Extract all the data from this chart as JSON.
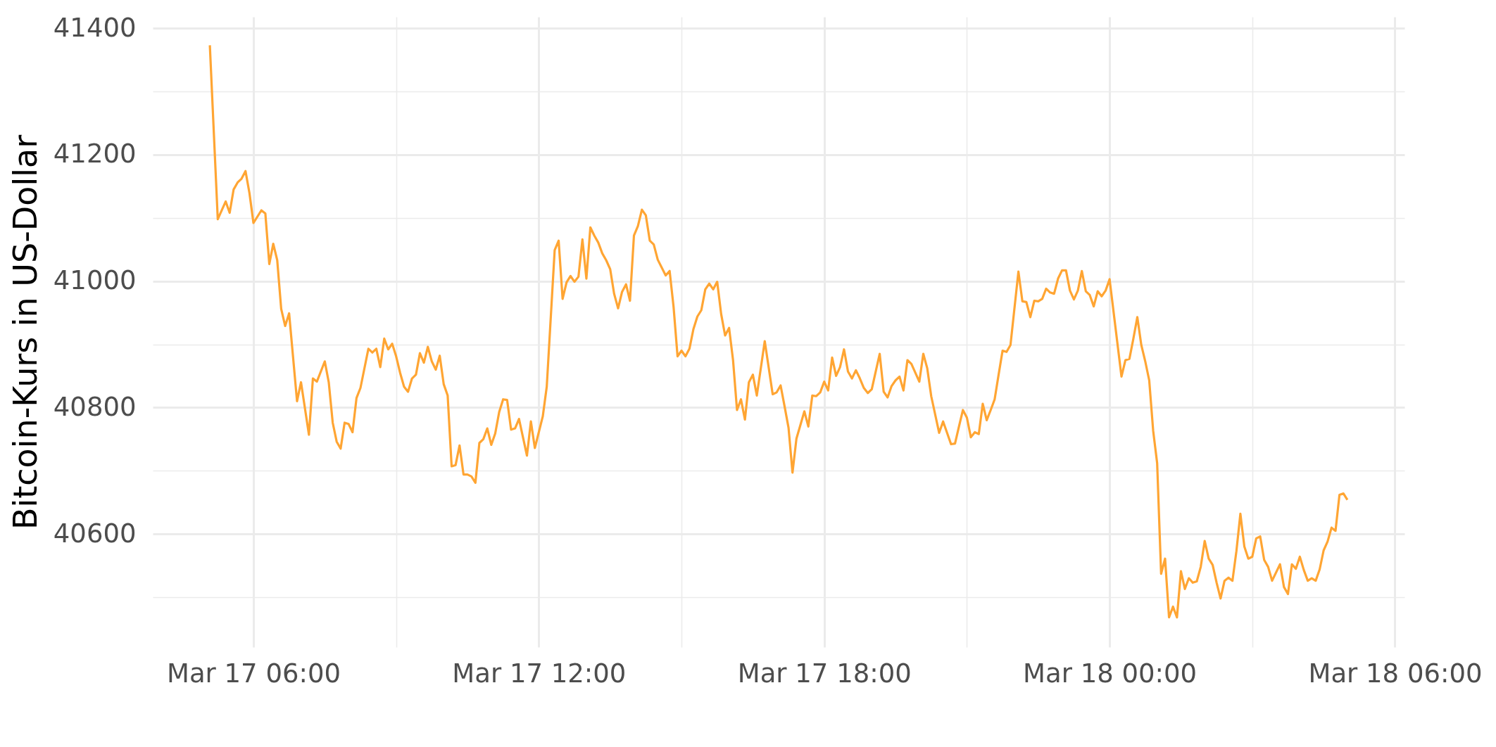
{
  "chart_data": {
    "type": "line",
    "ylabel": "Bitcoin-Kurs in US-Dollar",
    "x": [
      "--03-17T05:05",
      "--03-17T05:15",
      "--03-17T05:25",
      "--03-17T05:30",
      "--03-17T05:35",
      "--03-17T05:40",
      "--03-17T05:45",
      "--03-17T05:50",
      "--03-17T05:55",
      "--03-17T06:00",
      "--03-17T06:10",
      "--03-17T06:15",
      "--03-17T06:20",
      "--03-17T06:25",
      "--03-17T06:30",
      "--03-17T06:35",
      "--03-17T06:40",
      "--03-17T06:45",
      "--03-17T06:55",
      "--03-17T07:00",
      "--03-17T07:10",
      "--03-17T07:15",
      "--03-17T07:20",
      "--03-17T07:30",
      "--03-17T07:35",
      "--03-17T07:40",
      "--03-17T07:45",
      "--03-17T07:50",
      "--03-17T07:55",
      "--03-17T08:00",
      "--03-17T08:05",
      "--03-17T08:10",
      "--03-17T08:15",
      "--03-17T08:25",
      "--03-17T08:30",
      "--03-17T08:35",
      "--03-17T08:40",
      "--03-17T08:45",
      "--03-17T08:50",
      "--03-17T08:55",
      "--03-17T09:00",
      "--03-17T09:05",
      "--03-17T09:10",
      "--03-17T09:15",
      "--03-17T09:20",
      "--03-17T09:25",
      "--03-17T09:30",
      "--03-17T09:35",
      "--03-17T09:40",
      "--03-17T09:45",
      "--03-17T09:50",
      "--03-17T09:55",
      "--03-17T10:00",
      "--03-17T10:05",
      "--03-17T10:10",
      "--03-17T10:15",
      "--03-17T10:20",
      "--03-17T10:25",
      "--03-17T10:30",
      "--03-17T10:35",
      "--03-17T10:40",
      "--03-17T10:45",
      "--03-17T10:50",
      "--03-17T10:55",
      "--03-17T11:00",
      "--03-17T11:05",
      "--03-17T11:10",
      "--03-17T11:15",
      "--03-17T11:20",
      "--03-17T11:25",
      "--03-17T11:30",
      "--03-17T11:35",
      "--03-17T11:45",
      "--03-17T11:50",
      "--03-17T11:55",
      "--03-17T12:05",
      "--03-17T12:10",
      "--03-17T12:20",
      "--03-17T12:25",
      "--03-17T12:30",
      "--03-17T12:35",
      "--03-17T12:40",
      "--03-17T12:45",
      "--03-17T12:50",
      "--03-17T12:55",
      "--03-17T13:00",
      "--03-17T13:05",
      "--03-17T13:10",
      "--03-17T13:15",
      "--03-17T13:20",
      "--03-17T13:25",
      "--03-17T13:30",
      "--03-17T13:35",
      "--03-17T13:40",
      "--03-17T13:45",
      "--03-17T13:50",
      "--03-17T13:55",
      "--03-17T14:00",
      "--03-17T14:05",
      "--03-17T14:10",
      "--03-17T14:15",
      "--03-17T14:20",
      "--03-17T14:25",
      "--03-17T14:30",
      "--03-17T14:40",
      "--03-17T14:45",
      "--03-17T14:50",
      "--03-17T14:55",
      "--03-17T15:00",
      "--03-17T15:05",
      "--03-17T15:10",
      "--03-17T15:15",
      "--03-17T15:20",
      "--03-17T15:25",
      "--03-17T15:30",
      "--03-17T15:35",
      "--03-17T15:40",
      "--03-17T15:45",
      "--03-17T15:50",
      "--03-17T15:55",
      "--03-17T16:00",
      "--03-17T16:05",
      "--03-17T16:10",
      "--03-17T16:15",
      "--03-17T16:20",
      "--03-17T16:25",
      "--03-17T16:30",
      "--03-17T16:35",
      "--03-17T16:45",
      "--03-17T16:55",
      "--03-17T17:00",
      "--03-17T17:05",
      "--03-17T17:10",
      "--03-17T17:15",
      "--03-17T17:20",
      "--03-17T17:25",
      "--03-17T17:35",
      "--03-17T17:40",
      "--03-17T17:45",
      "--03-17T17:50",
      "--03-17T17:55",
      "--03-17T18:00",
      "--03-17T18:05",
      "--03-17T18:10",
      "--03-17T18:15",
      "--03-17T18:20",
      "--03-17T18:25",
      "--03-17T18:30",
      "--03-17T18:35",
      "--03-17T18:40",
      "--03-17T18:45",
      "--03-17T18:50",
      "--03-17T18:55",
      "--03-17T19:00",
      "--03-17T19:05",
      "--03-17T19:10",
      "--03-17T19:15",
      "--03-17T19:20",
      "--03-17T19:25",
      "--03-17T19:30",
      "--03-17T19:35",
      "--03-17T19:40",
      "--03-17T19:45",
      "--03-17T19:50",
      "--03-17T20:00",
      "--03-17T20:05",
      "--03-17T20:10",
      "--03-17T20:15",
      "--03-17T20:25",
      "--03-17T20:30",
      "--03-17T20:40",
      "--03-17T20:45",
      "--03-17T20:50",
      "--03-17T20:55",
      "--03-17T21:00",
      "--03-17T21:05",
      "--03-17T21:10",
      "--03-17T21:15",
      "--03-17T21:20",
      "--03-17T21:25",
      "--03-17T21:30",
      "--03-17T21:35",
      "--03-17T21:40",
      "--03-17T21:45",
      "--03-17T21:50",
      "--03-17T21:55",
      "--03-17T22:05",
      "--03-17T22:10",
      "--03-17T22:15",
      "--03-17T22:20",
      "--03-17T22:25",
      "--03-17T22:30",
      "--03-17T22:35",
      "--03-17T22:40",
      "--03-17T22:45",
      "--03-17T22:50",
      "--03-17T22:55",
      "--03-17T23:00",
      "--03-17T23:05",
      "--03-17T23:10",
      "--03-17T23:15",
      "--03-17T23:20",
      "--03-17T23:25",
      "--03-17T23:30",
      "--03-17T23:35",
      "--03-17T23:40",
      "--03-17T23:45",
      "--03-17T23:50",
      "--03-17T23:55",
      "--03-18T00:00",
      "--03-18T00:15",
      "--03-18T00:20",
      "--03-18T00:25",
      "--03-18T00:30",
      "--03-18T00:35",
      "--03-18T00:40",
      "--03-18T00:45",
      "--03-18T00:50",
      "--03-18T00:55",
      "--03-18T01:00",
      "--03-18T01:05",
      "--03-18T01:10",
      "--03-18T01:15",
      "--03-18T01:20",
      "--03-18T01:25",
      "--03-18T01:30",
      "--03-18T01:35",
      "--03-18T01:40",
      "--03-18T01:45",
      "--03-18T01:50",
      "--03-18T01:55",
      "--03-18T02:00",
      "--03-18T02:05",
      "--03-18T02:10",
      "--03-18T02:15",
      "--03-18T02:20",
      "--03-18T02:25",
      "--03-18T02:30",
      "--03-18T02:35",
      "--03-18T02:40",
      "--03-18T02:45",
      "--03-18T02:50",
      "--03-18T02:55",
      "--03-18T03:00",
      "--03-18T03:05",
      "--03-18T03:10",
      "--03-18T03:15",
      "--03-18T03:20",
      "--03-18T03:25",
      "--03-18T03:35",
      "--03-18T03:40",
      "--03-18T03:45",
      "--03-18T03:50",
      "--03-18T03:55",
      "--03-18T04:00",
      "--03-18T04:05",
      "--03-18T04:10",
      "--03-18T04:15",
      "--03-18T04:20",
      "--03-18T04:25",
      "--03-18T04:30",
      "--03-18T04:35",
      "--03-18T04:40",
      "--03-18T04:45",
      "--03-18T04:50",
      "--03-18T04:55",
      "--03-18T05:00"
    ],
    "series": [
      {
        "color": "#ffa533",
        "values": [
          41373,
          41098,
          41126,
          41108,
          41145,
          41156,
          41162,
          41174,
          41139,
          41092,
          41112,
          41107,
          41027,
          41059,
          41033,
          40956,
          40929,
          40949,
          40810,
          40840,
          40757,
          40846,
          40841,
          40873,
          40840,
          40776,
          40746,
          40735,
          40776,
          40774,
          40761,
          40815,
          40831,
          40893,
          40887,
          40893,
          40864,
          40909,
          40892,
          40901,
          40881,
          40855,
          40833,
          40825,
          40846,
          40852,
          40886,
          40871,
          40896,
          40873,
          40860,
          40882,
          40837,
          40819,
          40707,
          40709,
          40740,
          40694,
          40694,
          40691,
          40681,
          40744,
          40750,
          40767,
          40741,
          40759,
          40793,
          40813,
          40812,
          40765,
          40767,
          40782,
          40724,
          40778,
          40736,
          40786,
          40833,
          41049,
          41064,
          40972,
          40998,
          41008,
          40999,
          41007,
          41066,
          41004,
          41085,
          41072,
          41061,
          41044,
          41033,
          41019,
          40980,
          40957,
          40983,
          40995,
          40969,
          41072,
          41087,
          41113,
          41104,
          41064,
          41058,
          41034,
          41009,
          41016,
          40959,
          40881,
          40890,
          40881,
          40893,
          40924,
          40944,
          40954,
          40987,
          40996,
          40987,
          40999,
          40948,
          40914,
          40926,
          40875,
          40796,
          40813,
          40781,
          40840,
          40852,
          40819,
          40905,
          40821,
          40824,
          40835,
          40802,
          40768,
          40697,
          40751,
          40794,
          40770,
          40819,
          40818,
          40824,
          40841,
          40827,
          40879,
          40850,
          40864,
          40892,
          40857,
          40846,
          40859,
          40846,
          40831,
          40823,
          40829,
          40857,
          40885,
          40825,
          40816,
          40834,
          40843,
          40849,
          40827,
          40875,
          40869,
          40841,
          40885,
          40862,
          40818,
          40760,
          40778,
          40742,
          40743,
          40770,
          40796,
          40784,
          40753,
          40761,
          40758,
          40806,
          40780,
          40796,
          40813,
          40852,
          40890,
          40888,
          40899,
          41015,
          40968,
          40967,
          40943,
          40969,
          40968,
          40972,
          40988,
          40982,
          40980,
          41004,
          41017,
          41017,
          40985,
          40971,
          40985,
          41016,
          40984,
          40978,
          40960,
          40984,
          40976,
          40985,
          41003,
          40849,
          40875,
          40877,
          40909,
          40943,
          40899,
          40873,
          40843,
          40763,
          40712,
          40537,
          40561,
          40468,
          40485,
          40468,
          40541,
          40513,
          40530,
          40523,
          40525,
          40548,
          40589,
          40561,
          40551,
          40523,
          40498,
          40526,
          40531,
          40526,
          40573,
          40632,
          40580,
          40561,
          40564,
          40593,
          40596,
          40559,
          40548,
          40526,
          40552,
          40516,
          40505,
          40552,
          40545,
          40564,
          40543,
          40526,
          40530,
          40526,
          40544,
          40574,
          40588,
          40610,
          40605,
          40662,
          40664,
          40654
        ]
      }
    ],
    "xlim": [
      "--03-17T03:53",
      "--03-18T06:12"
    ],
    "xticks": [
      {
        "value": "--03-17T06:00",
        "label": "Mar 17 06:00"
      },
      {
        "value": "--03-17T09:00",
        "label": null
      },
      {
        "value": "--03-17T12:00",
        "label": "Mar 17 12:00"
      },
      {
        "value": "--03-17T15:00",
        "label": null
      },
      {
        "value": "--03-17T18:00",
        "label": "Mar 17 18:00"
      },
      {
        "value": "--03-17T21:00",
        "label": null
      },
      {
        "value": "--03-18T00:00",
        "label": "Mar 18 00:00"
      },
      {
        "value": "--03-18T03:00",
        "label": null
      },
      {
        "value": "--03-18T06:00",
        "label": "Mar 18 06:00"
      }
    ],
    "ylim": [
      40421,
      41418
    ],
    "yticks": [
      {
        "value": 40500,
        "label": null
      },
      40600,
      {
        "value": 40700,
        "label": null
      },
      40800,
      {
        "value": 40900,
        "label": null
      },
      41000,
      {
        "value": 41100,
        "label": null
      },
      41200,
      {
        "value": 41300,
        "label": null
      },
      41400
    ],
    "grid": true
  }
}
